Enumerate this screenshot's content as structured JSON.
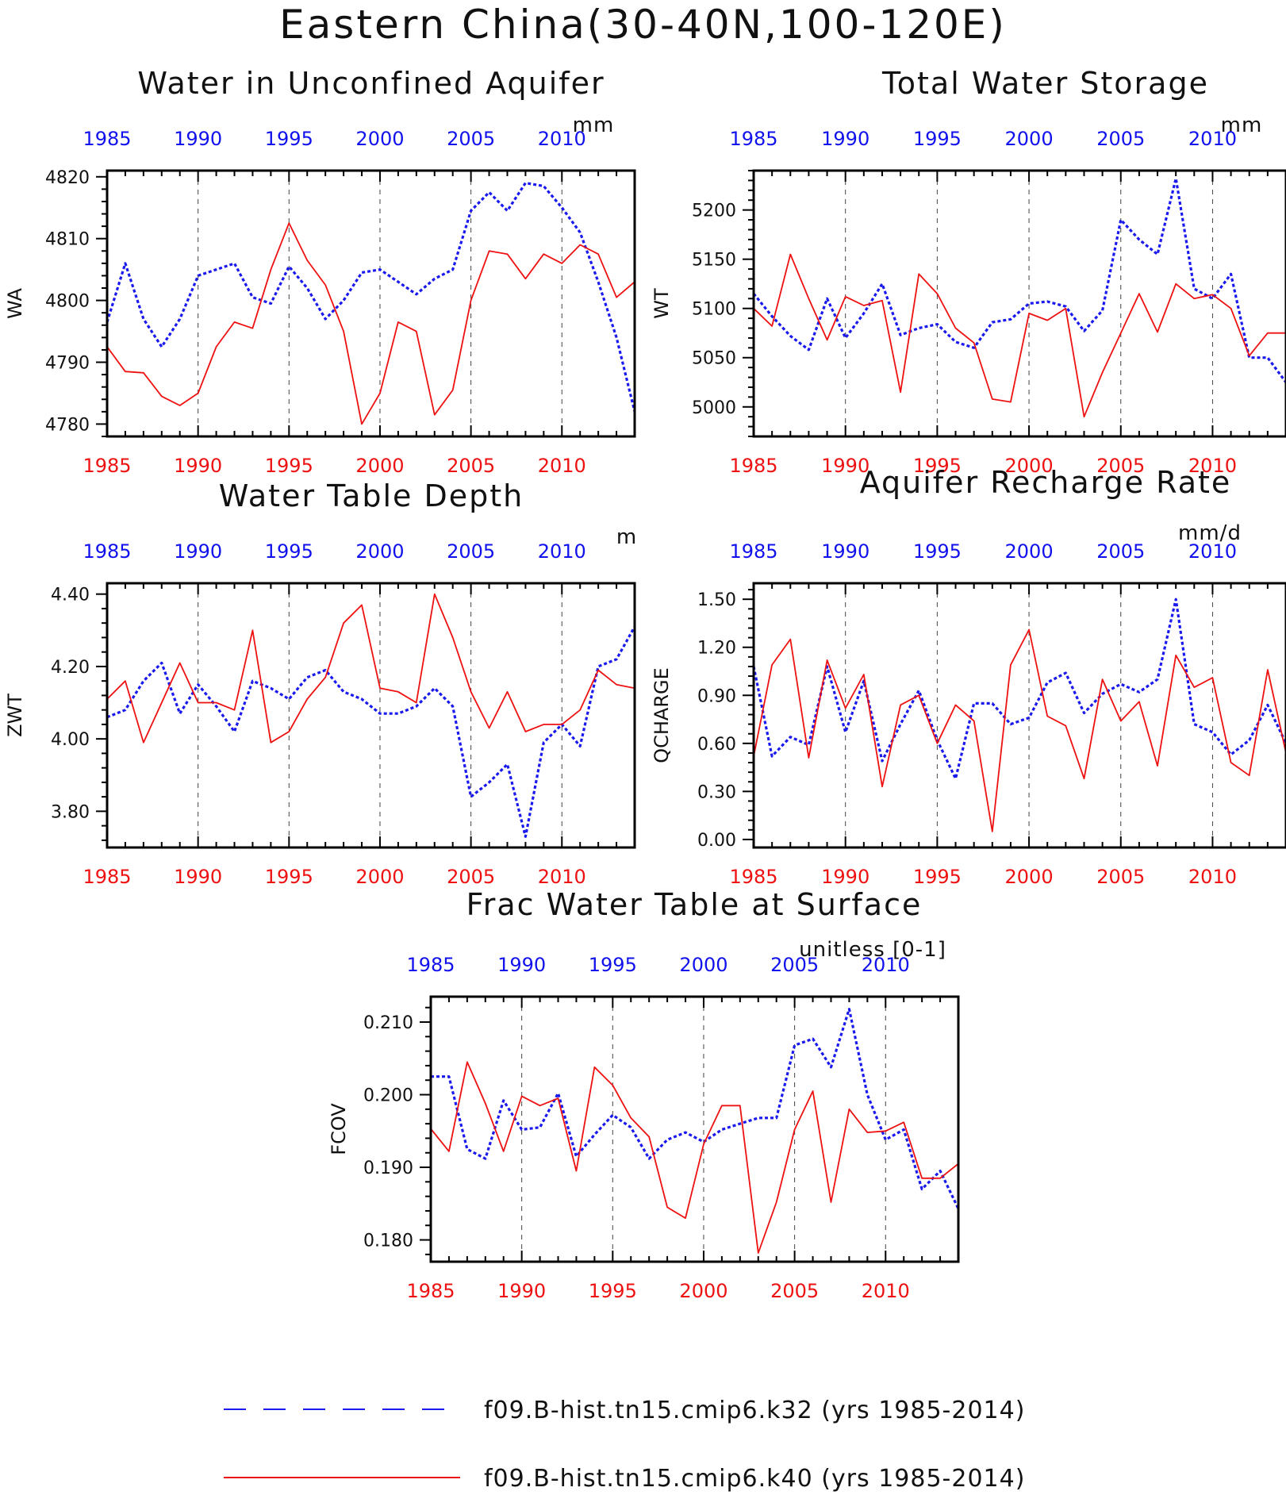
{
  "main_title": "Eastern China(30-40N,100-120E)",
  "colors": {
    "series_k32": "#1a1aee",
    "series_k40": "#ee1111",
    "bottom_ticks": "#ee1111",
    "top_ticks": "#1111ee"
  },
  "legend": [
    {
      "label": "f09.B-hist.tn15.cmip6.k32 (yrs 1985-2014)",
      "color": "#1a1aee",
      "style": "dashed"
    },
    {
      "label": "f09.B-hist.tn15.cmip6.k40 (yrs 1985-2014)",
      "color": "#ee1111",
      "style": "solid"
    }
  ],
  "chart_data": [
    {
      "type": "line",
      "title": "Water in Unconfined Aquifer",
      "ylabel": "WA",
      "units": "mm",
      "x": [
        1985,
        1986,
        1987,
        1988,
        1989,
        1990,
        1991,
        1992,
        1993,
        1994,
        1995,
        1996,
        1997,
        1998,
        1999,
        2000,
        2001,
        2002,
        2003,
        2004,
        2005,
        2006,
        2007,
        2008,
        2009,
        2010,
        2011,
        2012,
        2013,
        2014
      ],
      "xlim": [
        1985,
        2014
      ],
      "xticks": [
        1985,
        1990,
        1995,
        2000,
        2005,
        2010
      ],
      "ylim": [
        4778,
        4821
      ],
      "yticks": [
        4780,
        4790,
        4800,
        4810,
        4820
      ],
      "ytick_labels": [
        "4780",
        "4790",
        "4800",
        "4810",
        "4820"
      ],
      "series": [
        {
          "name": "f09.B-hist.tn15.cmip6.k32 (yrs 1985-2014)",
          "values": [
            4796.5,
            4806,
            4797,
            4792.5,
            4797,
            4804,
            4805,
            4806,
            4800.5,
            4799.5,
            4805.5,
            4802,
            4797,
            4800,
            4804.5,
            4805,
            4803,
            4801,
            4803.5,
            4805,
            4814.5,
            4817.5,
            4814.5,
            4819,
            4818.5,
            4815,
            4811,
            4803,
            4794,
            4782
          ]
        },
        {
          "name": "f09.B-hist.tn15.cmip6.k40 (yrs 1985-2014)",
          "values": [
            4792.5,
            4788.5,
            4788.3,
            4784.5,
            4783,
            4785,
            4792.5,
            4796.5,
            4795.5,
            4805,
            4812.5,
            4806.5,
            4802.5,
            4795,
            4780,
            4785,
            4796.5,
            4795,
            4781.5,
            4785.5,
            4800,
            4808,
            4807.5,
            4803.5,
            4807.5,
            4806,
            4809,
            4807.5,
            4800.5,
            4803
          ]
        }
      ]
    },
    {
      "type": "line",
      "title": "Total Water Storage",
      "ylabel": "WT",
      "units": "mm",
      "x": [
        1985,
        1986,
        1987,
        1988,
        1989,
        1990,
        1991,
        1992,
        1993,
        1994,
        1995,
        1996,
        1997,
        1998,
        1999,
        2000,
        2001,
        2002,
        2003,
        2004,
        2005,
        2006,
        2007,
        2008,
        2009,
        2010,
        2011,
        2012,
        2013,
        2014
      ],
      "xlim": [
        1985,
        2014
      ],
      "xticks": [
        1985,
        1990,
        1995,
        2000,
        2005,
        2010
      ],
      "ylim": [
        4970,
        5240
      ],
      "yticks": [
        5000,
        5050,
        5100,
        5150,
        5200
      ],
      "ytick_labels": [
        "5000",
        "5050",
        "5100",
        "5150",
        "5200"
      ],
      "series": [
        {
          "name": "f09.B-hist.tn15.cmip6.k32 (yrs 1985-2014)",
          "values": [
            5115,
            5092,
            5072,
            5058,
            5110,
            5070,
            5095,
            5125,
            5073,
            5080,
            5084,
            5066,
            5060,
            5086,
            5089,
            5105,
            5107,
            5102,
            5077,
            5098,
            5190,
            5170,
            5155,
            5232,
            5120,
            5110,
            5135,
            5050,
            5050,
            5025
          ]
        },
        {
          "name": "f09.B-hist.tn15.cmip6.k40 (yrs 1985-2014)",
          "values": [
            5100,
            5082,
            5155,
            5110,
            5068,
            5112,
            5103,
            5108,
            5015,
            5135,
            5115,
            5080,
            5065,
            5008,
            5005,
            5095,
            5088,
            5100,
            4990,
            5035,
            5075,
            5115,
            5076,
            5125,
            5110,
            5114,
            5100,
            5052,
            5075,
            5075
          ]
        }
      ]
    },
    {
      "type": "line",
      "title": "Water Table Depth",
      "ylabel": "ZWT",
      "units": "m",
      "x": [
        1985,
        1986,
        1987,
        1988,
        1989,
        1990,
        1991,
        1992,
        1993,
        1994,
        1995,
        1996,
        1997,
        1998,
        1999,
        2000,
        2001,
        2002,
        2003,
        2004,
        2005,
        2006,
        2007,
        2008,
        2009,
        2010,
        2011,
        2012,
        2013,
        2014
      ],
      "xlim": [
        1985,
        2014
      ],
      "xticks": [
        1985,
        1990,
        1995,
        2000,
        2005,
        2010
      ],
      "ylim": [
        3.7,
        4.43
      ],
      "yticks": [
        3.8,
        4.0,
        4.2,
        4.4
      ],
      "ytick_labels": [
        "3.80",
        "4.00",
        "4.20",
        "4.40"
      ],
      "series": [
        {
          "name": "f09.B-hist.tn15.cmip6.k32 (yrs 1985-2014)",
          "values": [
            4.06,
            4.08,
            4.16,
            4.21,
            4.07,
            4.15,
            4.09,
            4.02,
            4.16,
            4.14,
            4.11,
            4.17,
            4.19,
            4.13,
            4.11,
            4.07,
            4.07,
            4.09,
            4.14,
            4.09,
            3.84,
            3.88,
            3.93,
            3.73,
            3.99,
            4.04,
            3.98,
            4.2,
            4.22,
            4.31
          ]
        },
        {
          "name": "f09.B-hist.tn15.cmip6.k40 (yrs 1985-2014)",
          "values": [
            4.11,
            4.16,
            3.99,
            4.1,
            4.21,
            4.1,
            4.1,
            4.08,
            4.3,
            3.99,
            4.02,
            4.11,
            4.17,
            4.32,
            4.37,
            4.14,
            4.13,
            4.1,
            4.4,
            4.28,
            4.13,
            4.03,
            4.13,
            4.02,
            4.04,
            4.04,
            4.08,
            4.19,
            4.15,
            4.14
          ]
        }
      ]
    },
    {
      "type": "line",
      "title": "Aquifer Recharge Rate",
      "ylabel": "QCHARGE",
      "units": "mm/d",
      "x": [
        1985,
        1986,
        1987,
        1988,
        1989,
        1990,
        1991,
        1992,
        1993,
        1994,
        1995,
        1996,
        1997,
        1998,
        1999,
        2000,
        2001,
        2002,
        2003,
        2004,
        2005,
        2006,
        2007,
        2008,
        2009,
        2010,
        2011,
        2012,
        2013,
        2014
      ],
      "xlim": [
        1985,
        2014
      ],
      "xticks": [
        1985,
        1990,
        1995,
        2000,
        2005,
        2010
      ],
      "ylim": [
        -0.05,
        1.6
      ],
      "yticks": [
        0.0,
        0.3,
        0.6,
        0.9,
        1.2,
        1.5
      ],
      "ytick_labels": [
        "0.00",
        "0.30",
        "0.60",
        "0.90",
        "1.20",
        "1.50"
      ],
      "series": [
        {
          "name": "f09.B-hist.tn15.cmip6.k32 (yrs 1985-2014)",
          "values": [
            1.08,
            0.52,
            0.64,
            0.59,
            1.08,
            0.67,
            0.99,
            0.49,
            0.72,
            0.93,
            0.62,
            0.38,
            0.85,
            0.85,
            0.72,
            0.76,
            0.98,
            1.04,
            0.79,
            0.91,
            0.97,
            0.92,
            1.0,
            1.5,
            0.72,
            0.67,
            0.53,
            0.62,
            0.84,
            0.6
          ]
        },
        {
          "name": "f09.B-hist.tn15.cmip6.k40 (yrs 1985-2014)",
          "values": [
            0.52,
            1.09,
            1.25,
            0.51,
            1.12,
            0.82,
            1.03,
            0.33,
            0.84,
            0.9,
            0.6,
            0.84,
            0.74,
            0.05,
            1.09,
            1.31,
            0.77,
            0.71,
            0.38,
            1.0,
            0.74,
            0.86,
            0.46,
            1.15,
            0.95,
            1.01,
            0.48,
            0.4,
            1.06,
            0.54
          ]
        }
      ]
    },
    {
      "type": "line",
      "title": "Frac Water Table at Surface",
      "ylabel": "FCOV",
      "units": "unitless [0-1]",
      "x": [
        1985,
        1986,
        1987,
        1988,
        1989,
        1990,
        1991,
        1992,
        1993,
        1994,
        1995,
        1996,
        1997,
        1998,
        1999,
        2000,
        2001,
        2002,
        2003,
        2004,
        2005,
        2006,
        2007,
        2008,
        2009,
        2010,
        2011,
        2012,
        2013,
        2014
      ],
      "xlim": [
        1985,
        2014
      ],
      "xticks": [
        1985,
        1990,
        1995,
        2000,
        2005,
        2010
      ],
      "ylim": [
        0.177,
        0.2135
      ],
      "yticks": [
        0.18,
        0.19,
        0.2,
        0.21
      ],
      "ytick_labels": [
        "0.180",
        "0.190",
        "0.200",
        "0.210"
      ],
      "series": [
        {
          "name": "f09.B-hist.tn15.cmip6.k32 (yrs 1985-2014)",
          "values": [
            0.2025,
            0.2025,
            0.1925,
            0.1912,
            0.1992,
            0.1952,
            0.1955,
            0.2002,
            0.1915,
            0.1945,
            0.1972,
            0.1955,
            0.1912,
            0.1938,
            0.1948,
            0.1935,
            0.1952,
            0.196,
            0.1968,
            0.1968,
            0.2068,
            0.2077,
            0.2038,
            0.2118,
            0.2,
            0.1938,
            0.1952,
            0.187,
            0.1895,
            0.1843
          ]
        },
        {
          "name": "f09.B-hist.tn15.cmip6.k40 (yrs 1985-2014)",
          "values": [
            0.1953,
            0.1922,
            0.2045,
            0.1988,
            0.1922,
            0.1998,
            0.1985,
            0.1995,
            0.1895,
            0.2038,
            0.2013,
            0.1968,
            0.1942,
            0.1845,
            0.183,
            0.1932,
            0.1985,
            0.1985,
            0.1782,
            0.1852,
            0.1952,
            0.2005,
            0.1852,
            0.198,
            0.1948,
            0.195,
            0.1962,
            0.1885,
            0.1885,
            0.1905
          ]
        }
      ]
    }
  ]
}
